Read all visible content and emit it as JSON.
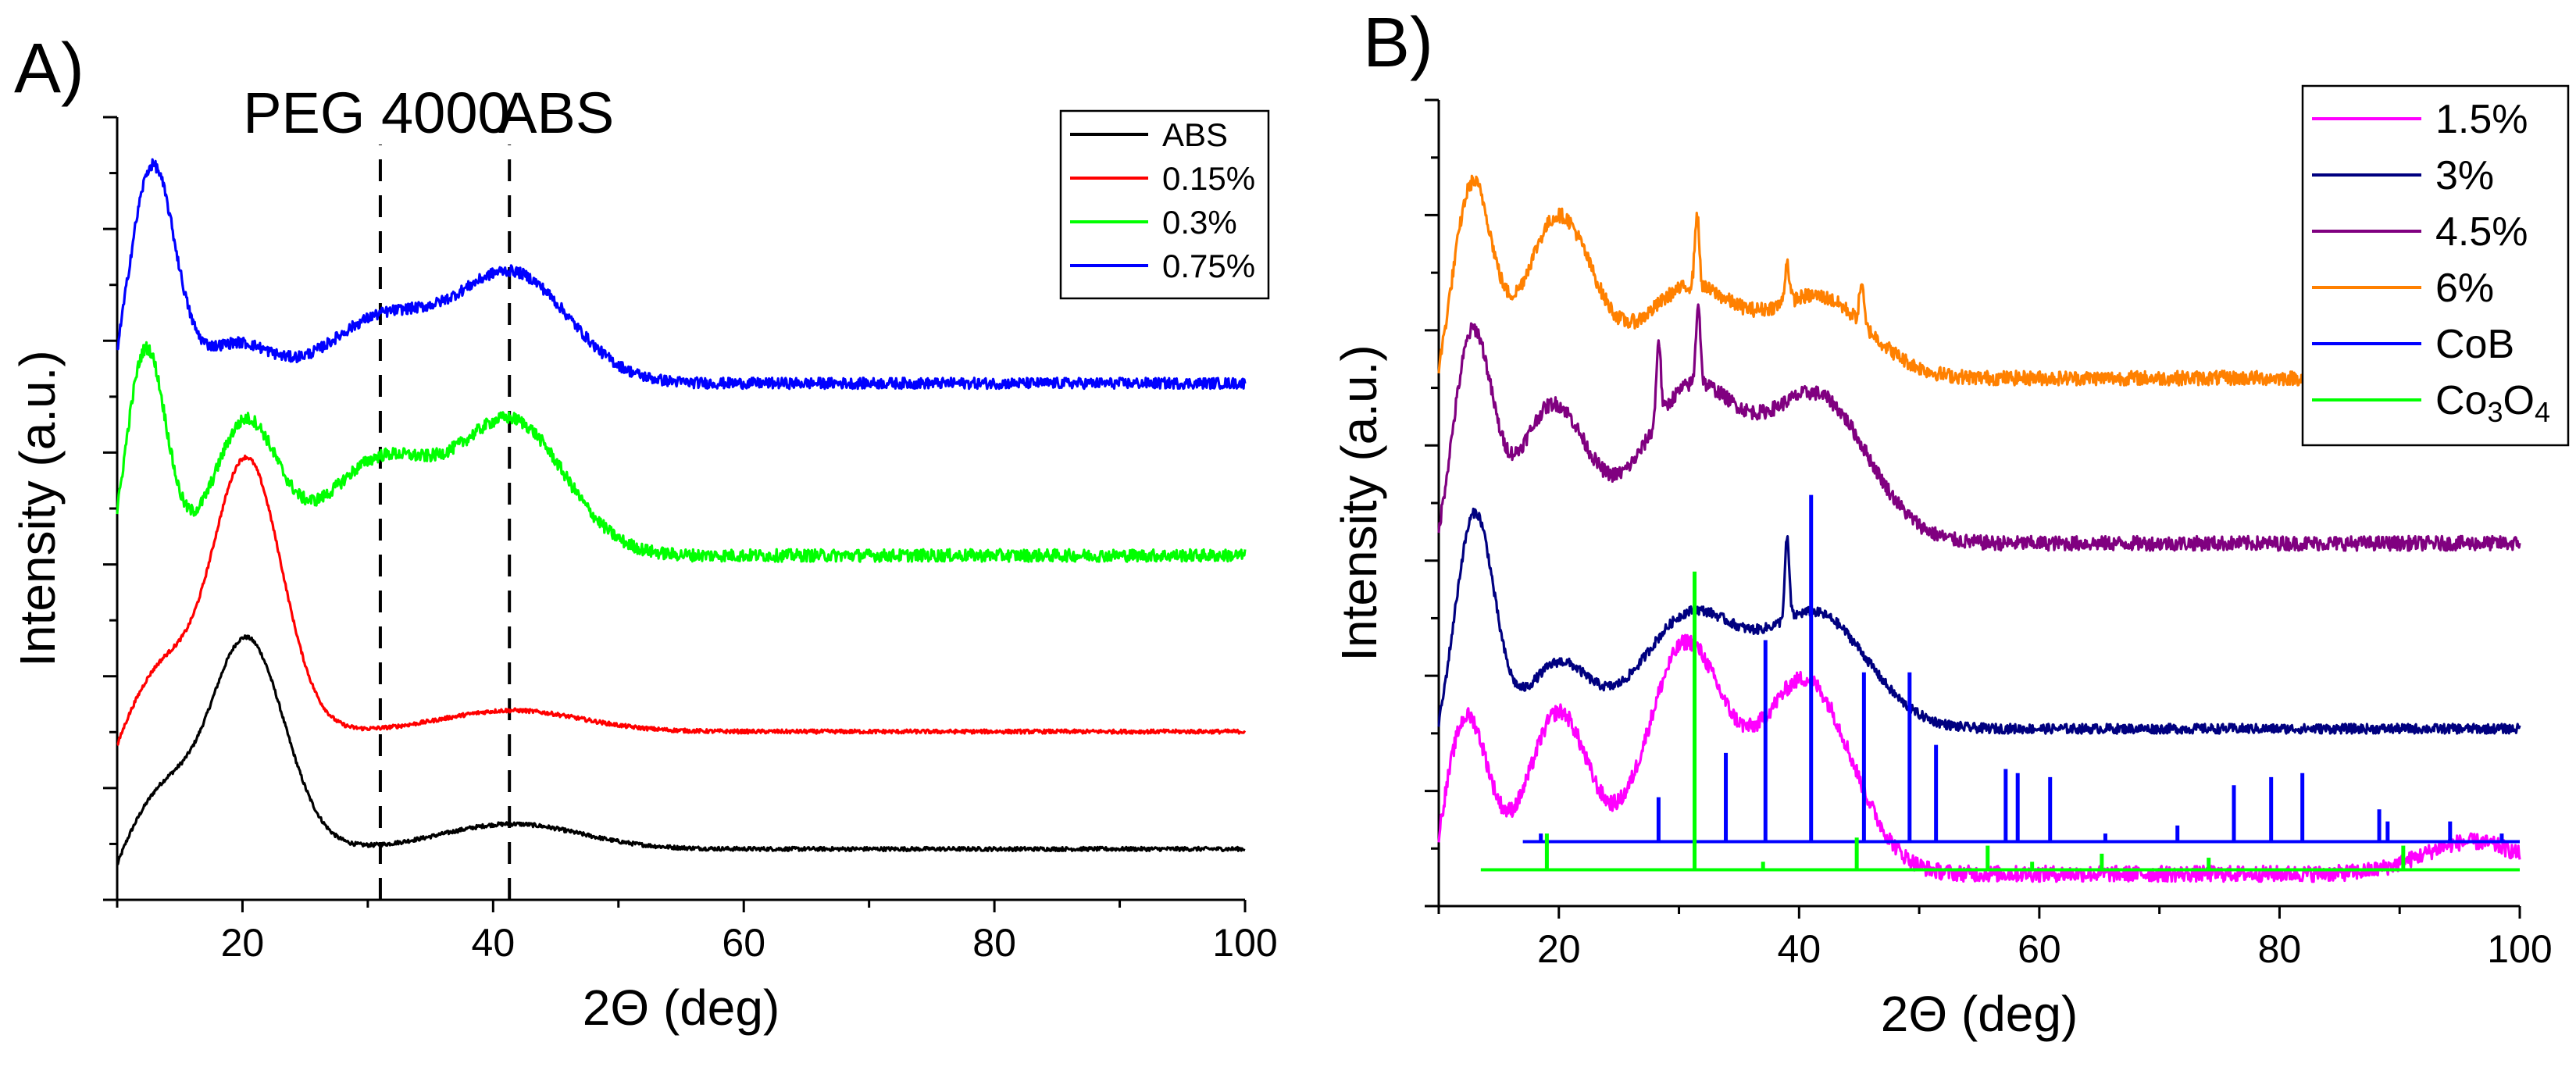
{
  "chart_data": [
    {
      "panel": "A)",
      "type": "line",
      "xlabel": "2Θ (deg)",
      "ylabel": "Intensity (a.u.)",
      "xlim": [
        10,
        100
      ],
      "ylim": [
        0,
        100
      ],
      "xticks": [
        20,
        40,
        60,
        80,
        100
      ],
      "legend_position": "top-right",
      "annotations": [
        {
          "text": "PEG 4000",
          "x": 31,
          "dashed_line": true
        },
        {
          "text": "ABS",
          "x": 41.3,
          "dashed_line": true
        }
      ],
      "series": [
        {
          "name": "ABS",
          "color": "#000000",
          "offset": 6.5,
          "noise": 0.25,
          "peaks": [
            [
              13.5,
              6.5,
              2.2
            ],
            [
              20.3,
              27,
              3.0
            ],
            [
              41.5,
              3.2,
              5.5
            ]
          ]
        },
        {
          "name": "0.15%",
          "color": "#ff0000",
          "offset": 21.5,
          "noise": 0.25,
          "peaks": [
            [
              13.5,
              7.5,
              2.2
            ],
            [
              20.3,
              35,
              2.8
            ],
            [
              41.5,
              2.7,
              5.5
            ]
          ]
        },
        {
          "name": "0.3%",
          "color": "#00ff00",
          "offset": 44,
          "noise": 0.8,
          "peaks": [
            [
              12.3,
              27,
              1.6
            ],
            [
              20.3,
              17,
              2.5
            ],
            [
              31,
              12,
              4.2
            ],
            [
              41.5,
              17,
              4.2
            ]
          ]
        },
        {
          "name": "0.75%",
          "color": "#0000ff",
          "offset": 66,
          "noise": 0.7,
          "peaks": [
            [
              12.8,
              28,
              1.8
            ],
            [
              19.5,
              5,
              2.8
            ],
            [
              31,
              8,
              4.2
            ],
            [
              41.5,
              14,
              4.5
            ]
          ]
        }
      ]
    },
    {
      "panel": "B)",
      "type": "line",
      "xlabel": "2Θ (deg)",
      "ylabel": "Intensity (a.u.)",
      "xlim": [
        10,
        100
      ],
      "ylim": [
        0,
        100
      ],
      "xticks": [
        20,
        40,
        60,
        80,
        100
      ],
      "legend_position": "top-right",
      "series": [
        {
          "name": "1.5%",
          "color": "#ff00ff",
          "offset": 4,
          "noise": 1.0,
          "peaks": [
            [
              12.3,
              20,
              1.8
            ],
            [
              20,
              20,
              2.5
            ],
            [
              30.5,
              28,
              3.2
            ],
            [
              40.5,
              24,
              3.8
            ],
            [
              96,
              4,
              4
            ]
          ]
        },
        {
          "name": "3%",
          "color": "#000080",
          "offset": 22,
          "noise": 0.6,
          "peaks": [
            [
              13,
              27,
              1.6
            ],
            [
              20,
              8,
              2.5
            ],
            [
              31,
              14,
              4
            ],
            [
              41.5,
              14,
              4.2
            ]
          ],
          "spikes": [
            [
              39,
              10
            ]
          ]
        },
        {
          "name": "4.5%",
          "color": "#800080",
          "offset": 45,
          "noise": 0.9,
          "peaks": [
            [
              12.8,
              26,
              1.6
            ],
            [
              19.5,
              17,
              2.8
            ],
            [
              31,
              19,
              4
            ],
            [
              41.5,
              18,
              4.2
            ]
          ],
          "spikes": [
            [
              28.3,
              10
            ],
            [
              31.6,
              10
            ]
          ]
        },
        {
          "name": "6%",
          "color": "#ff8000",
          "offset": 65.5,
          "noise": 0.9,
          "peaks": [
            [
              12.8,
              24,
              1.6
            ],
            [
              20,
              20,
              2.8
            ],
            [
              30.8,
              11,
              3.8
            ],
            [
              41.5,
              10,
              4.2
            ]
          ],
          "spikes": [
            [
              31.5,
              9
            ],
            [
              39,
              5
            ],
            [
              45.2,
              5
            ]
          ]
        },
        {
          "name": "CoB",
          "color": "#0000ff",
          "type": "sticks",
          "baseline": 8,
          "x_start": 17,
          "sticks": [
            [
              18.5,
              1
            ],
            [
              28.3,
              5.5
            ],
            [
              33.9,
              11
            ],
            [
              37.2,
              25
            ],
            [
              41,
              43
            ],
            [
              45.4,
              21
            ],
            [
              49.2,
              21
            ],
            [
              51.4,
              12
            ],
            [
              57.2,
              9
            ],
            [
              58.2,
              8.5
            ],
            [
              60.9,
              8
            ],
            [
              65.5,
              1
            ],
            [
              71.5,
              2
            ],
            [
              76.2,
              7
            ],
            [
              79.3,
              8
            ],
            [
              81.9,
              8.5
            ],
            [
              88.3,
              4
            ],
            [
              89,
              2.5
            ],
            [
              94.2,
              2.5
            ],
            [
              98.5,
              1
            ]
          ]
        },
        {
          "name": "Co₃O₄",
          "color": "#00ff00",
          "type": "sticks",
          "baseline": 4.5,
          "x_start": 13.5,
          "sticks": [
            [
              19,
              4.5
            ],
            [
              31.3,
              37
            ],
            [
              37,
              1
            ],
            [
              44.8,
              4
            ],
            [
              55.7,
              3
            ],
            [
              59.4,
              1
            ],
            [
              65.2,
              2
            ],
            [
              74.1,
              1.5
            ],
            [
              90.3,
              3
            ]
          ]
        }
      ]
    }
  ],
  "legend_labels": {
    "co3o4_base": "Co",
    "co3o4_sub1": "3",
    "co3o4_mid": "O",
    "co3o4_sub2": "4"
  }
}
